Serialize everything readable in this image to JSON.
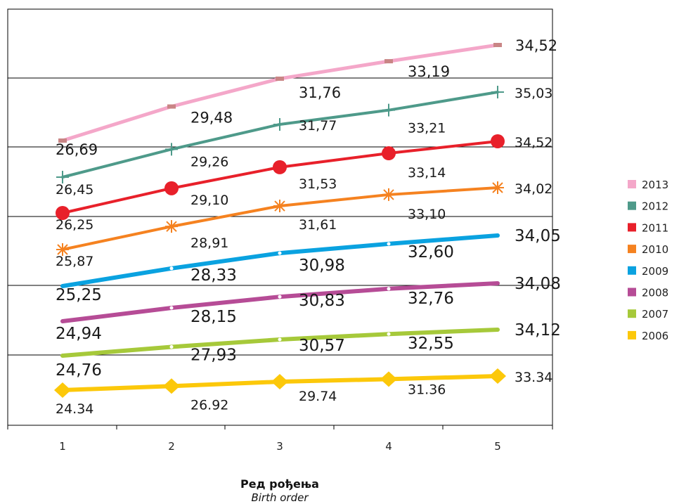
{
  "chart_data": {
    "type": "line",
    "categories": [
      "1",
      "2",
      "3",
      "4",
      "5"
    ],
    "xlabel": "Ред рођења",
    "xlabel_sub": "Birth order",
    "grid": true,
    "legend_position": "right",
    "series": [
      {
        "name": "2013",
        "color": "#f4a7c9",
        "marker": "dash",
        "values": [
          26.69,
          29.48,
          31.76,
          33.19,
          34.52
        ],
        "labels": [
          "26,69",
          "29,48",
          "31,76",
          "33,19",
          "34,52"
        ]
      },
      {
        "name": "2012",
        "color": "#4e9a8a",
        "marker": "plus",
        "values": [
          26.45,
          29.26,
          31.77,
          33.21,
          35.03
        ],
        "labels": [
          "26,45",
          "29,26",
          "31,77",
          "33,21",
          "35,03"
        ]
      },
      {
        "name": "2011",
        "color": "#e8202a",
        "marker": "circle",
        "values": [
          26.25,
          29.1,
          31.53,
          33.14,
          34.52
        ],
        "labels": [
          "26,25",
          "29,10",
          "31,53",
          "33,14",
          "34,52"
        ]
      },
      {
        "name": "2010",
        "color": "#f58220",
        "marker": "asterisk",
        "values": [
          25.87,
          28.91,
          31.61,
          33.1,
          34.02
        ],
        "labels": [
          "25,87",
          "28,91",
          "31,61",
          "33,10",
          "34,02"
        ]
      },
      {
        "name": "2009",
        "color": "#0aa2e0",
        "marker": "dot",
        "values": [
          25.25,
          28.33,
          30.98,
          32.6,
          34.05
        ],
        "labels": [
          "25,25",
          "28,33",
          "30,98",
          "32,60",
          "34,05"
        ]
      },
      {
        "name": "2008",
        "color": "#b64c96",
        "marker": "dot",
        "values": [
          24.94,
          28.15,
          30.83,
          32.76,
          34.08
        ],
        "labels": [
          "24,94",
          "28,15",
          "30,83",
          "32,76",
          "34,08"
        ]
      },
      {
        "name": "2007",
        "color": "#a6c93a",
        "marker": "dot",
        "values": [
          24.76,
          27.93,
          30.57,
          32.55,
          34.12
        ],
        "labels": [
          "24,76",
          "27,93",
          "30,57",
          "32,55",
          "34,12"
        ]
      },
      {
        "name": "2006",
        "color": "#fcc80a",
        "marker": "diamond",
        "values": [
          24.34,
          26.92,
          29.74,
          31.36,
          33.34
        ],
        "labels": [
          "24.34",
          "26.92",
          "29.74",
          "31.36",
          "33.34"
        ]
      }
    ]
  }
}
